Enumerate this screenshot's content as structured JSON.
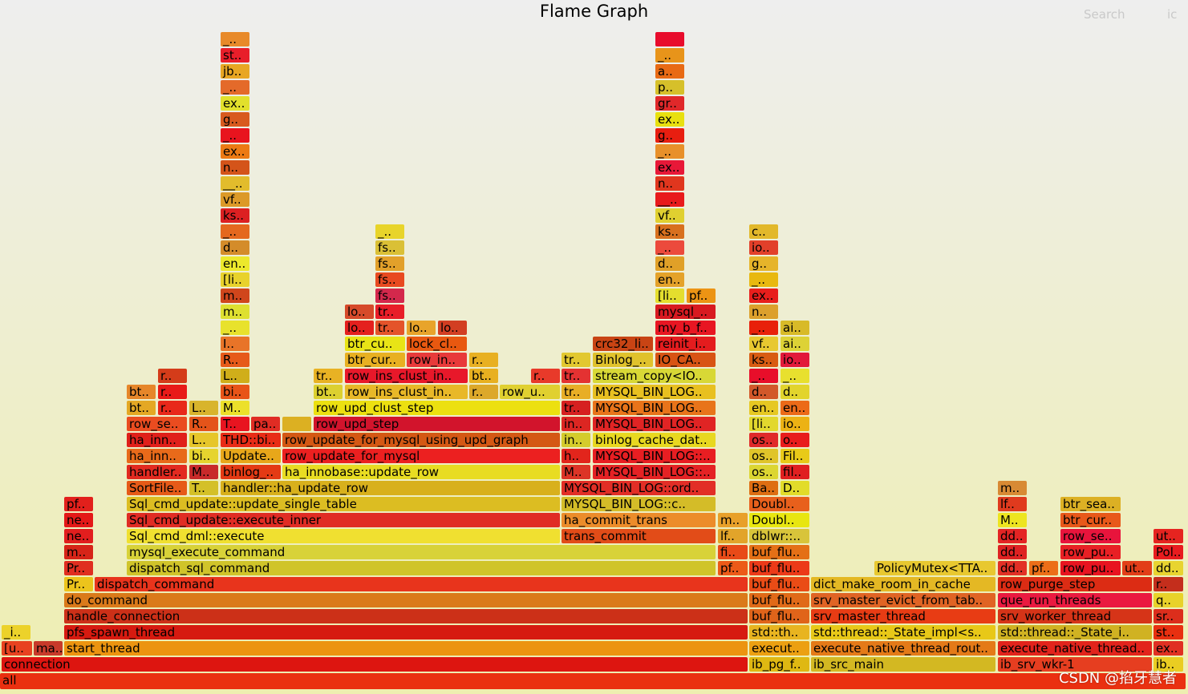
{
  "title": "Flame Graph",
  "search_label": "Search",
  "ic_label": "ic",
  "watermark": "CSDN @掐牙慧者",
  "frames": [
    [
      "all",
      "#ea3010",
      0,
      840,
      1478,
      20
    ],
    [
      "connection",
      "#dd1510",
      2,
      820,
      930
    ],
    [
      "ib_pg_f..",
      "#dfb812",
      934,
      820,
      75
    ],
    [
      "ib_src_main",
      "#d3b822",
      1011,
      820,
      230
    ],
    [
      "ib_srv_wkr-1",
      "#e63e20",
      1244,
      820,
      192
    ],
    [
      "ib..",
      "#eacd22",
      1438,
      820,
      37
    ],
    [
      "[u..",
      "#e84220",
      2,
      800,
      38
    ],
    [
      "ma..",
      "#c83a2a",
      42,
      800,
      36
    ],
    [
      "start_thread",
      "#ec9410",
      80,
      800,
      852
    ],
    [
      "execut..",
      "#eca012",
      934,
      800,
      75
    ],
    [
      "execute_native_thread_rout..",
      "#e47a18",
      1011,
      800,
      230
    ],
    [
      "execute_native_thread..",
      "#e2241c",
      1244,
      800,
      192
    ],
    [
      "ex..",
      "#e03022",
      1438,
      800,
      37
    ],
    [
      "_i..",
      "#ecd22a",
      2,
      780,
      36
    ],
    [
      "pfs_spawn_thread",
      "#d61a10",
      80,
      780,
      852
    ],
    [
      "std::th..",
      "#e8b420",
      934,
      780,
      75
    ],
    [
      "std::thread::_State_impl<s..",
      "#e8c818",
      1011,
      780,
      230
    ],
    [
      "std::thread::_State_i..",
      "#d0b222",
      1244,
      780,
      192
    ],
    [
      "st..",
      "#e83010",
      1438,
      780,
      37
    ],
    [
      "handle_connection",
      "#cc3018",
      80,
      760,
      852
    ],
    [
      "buf_flu..",
      "#e0641a",
      934,
      760,
      75
    ],
    [
      "srv_master_thread",
      "#e83c14",
      1011,
      760,
      230
    ],
    [
      "srv_worker_thread",
      "#d63418",
      1244,
      760,
      192
    ],
    [
      "sr..",
      "#dc2e1c",
      1438,
      760,
      37
    ],
    [
      "do_command",
      "#da7a1a",
      80,
      740,
      852
    ],
    [
      "buf_flu..",
      "#e06a18",
      934,
      740,
      75
    ],
    [
      "srv_master_evict_from_tab..",
      "#e06424",
      1011,
      740,
      230
    ],
    [
      "que_run_threads",
      "#ea1a40",
      1244,
      740,
      192
    ],
    [
      "q..",
      "#e8d22a",
      1438,
      740,
      37
    ],
    [
      "Pr..",
      "#ecc41c",
      80,
      720,
      36
    ],
    [
      "dispatch_command",
      "#e8341c",
      118,
      720,
      814
    ],
    [
      "buf_flu..",
      "#ea4c16",
      934,
      720,
      75
    ],
    [
      "dict_make_room_in_cache",
      "#e4b824",
      1011,
      720,
      230
    ],
    [
      "row_purge_step",
      "#dc2c14",
      1244,
      720,
      192
    ],
    [
      "r..",
      "#c42e1c",
      1438,
      720,
      37
    ],
    [
      "Pr..",
      "#e02e20",
      80,
      700,
      36
    ],
    [
      "dispatch_sql_command",
      "#d0c42a",
      158,
      700,
      734
    ],
    [
      "pf..",
      "#ec5a18",
      895,
      700,
      37
    ],
    [
      "buf_flu..",
      "#ec3a18",
      934,
      700,
      75
    ],
    [
      "PolicyMutex<TTA..",
      "#e8c830",
      1090,
      700,
      151
    ],
    [
      "dd..",
      "#e23026",
      1244,
      700,
      36
    ],
    [
      "pf..",
      "#ec6e18",
      1283,
      700,
      36
    ],
    [
      "row_pu..",
      "#e81420",
      1322,
      700,
      75
    ],
    [
      "ut..",
      "#e23e18",
      1399,
      700,
      37
    ],
    [
      "dd..",
      "#e8d430",
      1438,
      700,
      37
    ],
    [
      "m..",
      "#d62418",
      80,
      680,
      36
    ],
    [
      "mysql_execute_command",
      "#d8d238",
      158,
      680,
      734
    ],
    [
      "fi..",
      "#e84a18",
      895,
      680,
      37
    ],
    [
      "buf_flu..",
      "#e47016",
      934,
      680,
      75
    ],
    [
      "dd..",
      "#de2222",
      1244,
      680,
      36
    ],
    [
      "row_pu..",
      "#e82024",
      1322,
      680,
      75
    ],
    [
      "Pol..",
      "#e81c1e",
      1438,
      680,
      37
    ],
    [
      "ne..",
      "#e21e1e",
      80,
      660,
      36
    ],
    [
      "Sql_cmd_dml::execute",
      "#f0e030",
      158,
      660,
      540
    ],
    [
      "trans_commit",
      "#e24c18",
      700,
      660,
      192
    ],
    [
      "lf..",
      "#e2a42a",
      895,
      660,
      37
    ],
    [
      "dblwr::..",
      "#d8c43a",
      934,
      660,
      75
    ],
    [
      "dd..",
      "#e42424",
      1244,
      660,
      36
    ],
    [
      "row_se..",
      "#e8143c",
      1322,
      660,
      75
    ],
    [
      "ut..",
      "#e62420",
      1438,
      660,
      37
    ],
    [
      "ne..",
      "#e41818",
      80,
      640,
      36
    ],
    [
      "Sql_cmd_update::execute_inner",
      "#e02c24",
      158,
      640,
      540
    ],
    [
      "ha_commit_trans",
      "#ec8c2a",
      700,
      640,
      192
    ],
    [
      "m..",
      "#e8a02a",
      895,
      640,
      37
    ],
    [
      "Doubl..",
      "#e8e610",
      934,
      640,
      75
    ],
    [
      "M..",
      "#ede520",
      1244,
      640,
      36
    ],
    [
      "btr_cur..",
      "#e8581a",
      1322,
      640,
      75
    ],
    [
      "pf..",
      "#e2201c",
      80,
      620,
      36
    ],
    [
      "Sql_cmd_update::update_single_table",
      "#dcbd22",
      158,
      620,
      540
    ],
    [
      "MYSQL_BIN_LOG::c..",
      "#d4bc28",
      700,
      620,
      192
    ],
    [
      "Doubl..",
      "#e8601c",
      934,
      620,
      75
    ],
    [
      "lf..",
      "#e03a1e",
      1244,
      620,
      36
    ],
    [
      "btr_sea..",
      "#dcb024",
      1322,
      620,
      75
    ],
    [
      "SortFile..",
      "#e65a18",
      158,
      600,
      75
    ],
    [
      "T..",
      "#d4c028",
      236,
      600,
      36
    ],
    [
      "handler::ha_update_row",
      "#d8b01c",
      275,
      600,
      423
    ],
    [
      "MYSQL_BIN_LOG::ord..",
      "#e22e26",
      700,
      600,
      192
    ],
    [
      "Ba..",
      "#de6e12",
      934,
      600,
      36
    ],
    [
      "D..",
      "#e2dc2a",
      973,
      600,
      36
    ],
    [
      "m..",
      "#d88a34",
      1244,
      600,
      36
    ],
    [
      "handler..",
      "#e22a20",
      158,
      580,
      75
    ],
    [
      "M..",
      "#c82a2a",
      236,
      580,
      36
    ],
    [
      "binlog_..",
      "#e43a14",
      275,
      580,
      75
    ],
    [
      "ha_innobase::update_row",
      "#e8dc22",
      352,
      580,
      346
    ],
    [
      "M..",
      "#dc3426",
      700,
      580,
      36
    ],
    [
      "MYSQL_BIN_LOG::..",
      "#e42224",
      739,
      580,
      153
    ],
    [
      "os..",
      "#dcd632",
      934,
      580,
      36
    ],
    [
      "fil..",
      "#e02020",
      973,
      580,
      36
    ],
    [
      "ha_inn..",
      "#e86a1a",
      158,
      560,
      75
    ],
    [
      "bi..",
      "#e6d42e",
      236,
      560,
      36
    ],
    [
      "Update..",
      "#e8a71a",
      275,
      560,
      75
    ],
    [
      "row_update_for_mysql",
      "#ec2020",
      352,
      560,
      346
    ],
    [
      "h..",
      "#e2251c",
      700,
      560,
      36
    ],
    [
      "MYSQL_BIN_LOG::..",
      "#e81e22",
      739,
      560,
      153
    ],
    [
      "os..",
      "#e0c42a",
      934,
      560,
      36
    ],
    [
      "Fil..",
      "#e8ca18",
      973,
      560,
      36
    ],
    [
      "ha_inn..",
      "#e0201a",
      158,
      540,
      75
    ],
    [
      "L..",
      "#e6c62a",
      236,
      540,
      36
    ],
    [
      "THD::bi..",
      "#e82c16",
      275,
      540,
      75
    ],
    [
      "row_update_for_mysql_using_upd_graph",
      "#d45814",
      352,
      540,
      346
    ],
    [
      "in..",
      "#d4cc2c",
      700,
      540,
      36
    ],
    [
      "binlog_cache_dat..",
      "#e8d820",
      739,
      540,
      153
    ],
    [
      "os..",
      "#e02a2a",
      934,
      540,
      36
    ],
    [
      "o..",
      "#e81c1c",
      973,
      540,
      36
    ],
    [
      "row_se..",
      "#ea4c20",
      158,
      520,
      75
    ],
    [
      "R..",
      "#e4541a",
      236,
      520,
      36
    ],
    [
      "T..",
      "#e81420",
      275,
      520,
      36
    ],
    [
      "pa..",
      "#e02c24",
      313,
      520,
      36
    ],
    [
      "",
      "#dcb022",
      352,
      520,
      36
    ],
    [
      "row_upd_step",
      "#d2142c",
      391,
      520,
      307
    ],
    [
      "in..",
      "#dc2622",
      700,
      520,
      36
    ],
    [
      "MYSQL_BIN_LOG..",
      "#e02424",
      739,
      520,
      153
    ],
    [
      "[li..",
      "#e2d82e",
      934,
      520,
      36
    ],
    [
      "io..",
      "#ecb214",
      973,
      520,
      36
    ],
    [
      "bt..",
      "#e4a824",
      158,
      500,
      36
    ],
    [
      "r..",
      "#e8281a",
      197,
      500,
      36
    ],
    [
      "L..",
      "#d8b42c",
      236,
      500,
      36
    ],
    [
      "M..",
      "#ece02a",
      275,
      500,
      36
    ],
    [
      "row_upd_clust_step",
      "#ece010",
      391,
      500,
      307
    ],
    [
      "tr..",
      "#d62020",
      700,
      500,
      36
    ],
    [
      "MYSQL_BIN_LOG..",
      "#e8741a",
      739,
      500,
      153
    ],
    [
      "en..",
      "#e6c822",
      934,
      500,
      36
    ],
    [
      "en..",
      "#ec6a18",
      973,
      500,
      36
    ],
    [
      "bt..",
      "#e6862a",
      158,
      480,
      36
    ],
    [
      "r..",
      "#e81a18",
      197,
      480,
      36
    ],
    [
      "bi..",
      "#e85418",
      275,
      480,
      36
    ],
    [
      "bt..",
      "#dcd030",
      391,
      480,
      36
    ],
    [
      "row_ins_clust_in..",
      "#e8b828",
      430,
      480,
      153
    ],
    [
      "r..",
      "#dca82a",
      585,
      480,
      36
    ],
    [
      "row_u..",
      "#e0d030",
      623,
      480,
      75
    ],
    [
      "tr..",
      "#e8ae26",
      700,
      480,
      36
    ],
    [
      "MYSQL_BIN_LOG..",
      "#e8c020",
      739,
      480,
      153
    ],
    [
      "d..",
      "#d2582a",
      934,
      480,
      36
    ],
    [
      "d..",
      "#e2d42c",
      973,
      480,
      36
    ],
    [
      "r..",
      "#d43c1a",
      197,
      460,
      36
    ],
    [
      "L..",
      "#d0ae1a",
      275,
      460,
      36
    ],
    [
      "tr..",
      "#e8b224",
      391,
      460,
      36
    ],
    [
      "row_ins_clust_in..",
      "#e8182a",
      430,
      460,
      153
    ],
    [
      "bt..",
      "#e8b020",
      585,
      460,
      36
    ],
    [
      "r..",
      "#e83a2a",
      662,
      460,
      36
    ],
    [
      "tr..",
      "#e43232",
      700,
      460,
      36
    ],
    [
      "stream_copy<IO..",
      "#d8d836",
      739,
      460,
      153
    ],
    [
      "_..",
      "#e80e2a",
      934,
      460,
      36
    ],
    [
      "_..",
      "#e8e02e",
      973,
      460,
      36
    ],
    [
      "R..",
      "#e65a1a",
      275,
      440,
      36
    ],
    [
      "btr_cur..",
      "#e8b022",
      430,
      440,
      75
    ],
    [
      "row_in..",
      "#e83a3a",
      507,
      440,
      75
    ],
    [
      "r..",
      "#e8b022",
      585,
      440,
      36
    ],
    [
      "tr..",
      "#e2c830",
      700,
      440,
      36
    ],
    [
      "Binlog_..",
      "#e0c22c",
      739,
      440,
      75
    ],
    [
      "IO_CA..",
      "#d85414",
      817,
      440,
      75
    ],
    [
      "ks..",
      "#d85c12",
      934,
      440,
      36
    ],
    [
      "io..",
      "#e2183a",
      973,
      440,
      36
    ],
    [
      "I..",
      "#e87428",
      275,
      420,
      36
    ],
    [
      "btr_cu..",
      "#e8e416",
      430,
      420,
      75
    ],
    [
      "lock_cl..",
      "#e85810",
      507,
      420,
      75
    ],
    [
      "crc32_li..",
      "#c84414",
      739,
      420,
      75
    ],
    [
      "reinit_i..",
      "#e41c1e",
      817,
      420,
      75
    ],
    [
      "vf..",
      "#e8c830",
      934,
      420,
      36
    ],
    [
      "ai..",
      "#ddd236",
      973,
      420,
      36
    ],
    [
      "_..",
      "#e8e22c",
      275,
      400,
      36
    ],
    [
      "lo..",
      "#e4201e",
      430,
      400,
      36
    ],
    [
      "tr..",
      "#e4542a",
      468,
      400,
      36
    ],
    [
      "lo..",
      "#e8a42a",
      507,
      400,
      36
    ],
    [
      "lo..",
      "#d23e22",
      546,
      400,
      36
    ],
    [
      "my_b_f..",
      "#e81622",
      817,
      400,
      75
    ],
    [
      "_..",
      "#e8200a",
      934,
      400,
      36
    ],
    [
      "ai..",
      "#d8ba28",
      973,
      400,
      36
    ],
    [
      "m..",
      "#dee030",
      275,
      380,
      36
    ],
    [
      "lo..",
      "#d64a2a",
      430,
      380,
      36
    ],
    [
      "tr..",
      "#e81e28",
      468,
      380,
      36
    ],
    [
      "mysql_..",
      "#d81a20",
      817,
      380,
      75
    ],
    [
      "n..",
      "#dca02c",
      934,
      380,
      36
    ],
    [
      "m..",
      "#d0461c",
      275,
      360,
      36
    ],
    [
      "fs..",
      "#d4284c",
      468,
      360,
      36
    ],
    [
      "[li..",
      "#e4de2e",
      817,
      360,
      36
    ],
    [
      "pf..",
      "#ec9414",
      856,
      360,
      36
    ],
    [
      "ex..",
      "#e81e1c",
      934,
      360,
      36
    ],
    [
      "[li..",
      "#e8d22c",
      275,
      340,
      36
    ],
    [
      "fs..",
      "#e84a20",
      468,
      340,
      36
    ],
    [
      "en..",
      "#e4a22a",
      817,
      340,
      36
    ],
    [
      "_..",
      "#e8b810",
      934,
      340,
      36
    ],
    [
      "en..",
      "#ece82c",
      275,
      320,
      36
    ],
    [
      "fs..",
      "#e2a02a",
      468,
      320,
      36
    ],
    [
      "d..",
      "#e0a028",
      817,
      320,
      36
    ],
    [
      "g..",
      "#e6b42a",
      934,
      320,
      36
    ],
    [
      "d..",
      "#d48c2a",
      275,
      300,
      36
    ],
    [
      "fs..",
      "#dac036",
      468,
      300,
      36
    ],
    [
      "_..",
      "#ec4a3c",
      817,
      300,
      36
    ],
    [
      "io..",
      "#e2402a",
      934,
      300,
      36
    ],
    [
      "_..",
      "#e4681e",
      275,
      280,
      36
    ],
    [
      "_..",
      "#e8d42a",
      468,
      280,
      36
    ],
    [
      "ks..",
      "#d8701e",
      817,
      280,
      36
    ],
    [
      "c..",
      "#e2b82a",
      934,
      280,
      36
    ],
    [
      "ks..",
      "#dc2022",
      275,
      260,
      36
    ],
    [
      "vf..",
      "#e0d030",
      817,
      260,
      36
    ],
    [
      "vf..",
      "#dc9a28",
      275,
      240,
      36
    ],
    [
      "__..",
      "#e81a1c",
      817,
      240,
      36
    ],
    [
      "__..",
      "#e2bc2c",
      275,
      220,
      36
    ],
    [
      "n..",
      "#e0361e",
      817,
      220,
      36
    ],
    [
      "n..",
      "#d4541a",
      275,
      200,
      36
    ],
    [
      "ex..",
      "#e81838",
      817,
      200,
      36
    ],
    [
      "ex..",
      "#ec7a14",
      275,
      180,
      36
    ],
    [
      "_..",
      "#e8902a",
      817,
      180,
      36
    ],
    [
      "_..",
      "#e8141e",
      275,
      160,
      36
    ],
    [
      "g..",
      "#e81e10",
      817,
      160,
      36
    ],
    [
      "g..",
      "#d85a1e",
      275,
      140,
      36
    ],
    [
      "ex..",
      "#e8e010",
      817,
      140,
      36
    ],
    [
      "ex..",
      "#e2e02c",
      275,
      120,
      36
    ],
    [
      "gr..",
      "#e0282a",
      817,
      120,
      36
    ],
    [
      "_..",
      "#e46a2a",
      275,
      100,
      36
    ],
    [
      "p..",
      "#d6c02a",
      817,
      100,
      36
    ],
    [
      "jb..",
      "#e8a622",
      275,
      80,
      36
    ],
    [
      "a..",
      "#e86a14",
      817,
      80,
      36
    ],
    [
      "st..",
      "#e81e2a",
      275,
      60,
      36
    ],
    [
      "_..",
      "#e8941a",
      817,
      60,
      36
    ],
    [
      "_..",
      "#e88a2a",
      275,
      40,
      36
    ],
    [
      "",
      "#e80c2c",
      817,
      40,
      36
    ]
  ]
}
